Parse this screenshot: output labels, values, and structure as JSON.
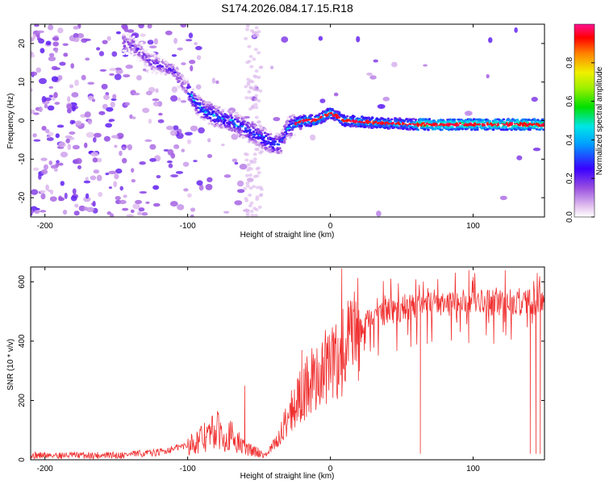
{
  "title": "S174.2026.084.17.15.R18",
  "chart_data": [
    {
      "type": "heatmap",
      "name": "spectrogram",
      "xlabel": "Height of straight line (km)",
      "ylabel": "Frequency (Hz)",
      "xlim": [
        -210,
        150
      ],
      "ylim": [
        -25,
        25
      ],
      "xticks": [
        -200,
        -100,
        0,
        100
      ],
      "yticks": [
        -20,
        -10,
        0,
        10,
        20
      ],
      "colorbar": {
        "label": "Normalized spectral amplitude",
        "range": [
          0,
          1
        ],
        "ticks": [
          0.0,
          0.2,
          0.4,
          0.6,
          0.8
        ],
        "tick_labels": [
          "0.0",
          "0.2",
          "0.4",
          "0.6",
          "0.8"
        ]
      },
      "ridge": [
        {
          "x": -140,
          "y": 20
        },
        {
          "x": -125,
          "y": 15
        },
        {
          "x": -110,
          "y": 13
        },
        {
          "x": -100,
          "y": 8
        },
        {
          "x": -95,
          "y": 5
        },
        {
          "x": -90,
          "y": 3
        },
        {
          "x": -80,
          "y": 1
        },
        {
          "x": -70,
          "y": 0
        },
        {
          "x": -60,
          "y": -2
        },
        {
          "x": -50,
          "y": -4
        },
        {
          "x": -40,
          "y": -6
        },
        {
          "x": -35,
          "y": -6
        },
        {
          "x": -30,
          "y": -2
        },
        {
          "x": -20,
          "y": 0
        },
        {
          "x": -10,
          "y": 0
        },
        {
          "x": 0,
          "y": 2
        },
        {
          "x": 10,
          "y": 0
        },
        {
          "x": 30,
          "y": -0.5
        },
        {
          "x": 60,
          "y": -1
        },
        {
          "x": 100,
          "y": -1
        },
        {
          "x": 150,
          "y": -1
        }
      ]
    },
    {
      "type": "line",
      "name": "snr",
      "xlabel": "Height of straight line (km)",
      "ylabel": "SNR (10 * v/v)",
      "xlim": [
        -210,
        150
      ],
      "ylim": [
        0,
        650
      ],
      "xticks": [
        -200,
        -100,
        0,
        100
      ],
      "yticks": [
        0,
        200,
        400,
        600
      ],
      "color": "#f03030",
      "trend": [
        {
          "x": -210,
          "y": 15
        },
        {
          "x": -150,
          "y": 15
        },
        {
          "x": -120,
          "y": 25
        },
        {
          "x": -100,
          "y": 50
        },
        {
          "x": -90,
          "y": 70
        },
        {
          "x": -80,
          "y": 100
        },
        {
          "x": -70,
          "y": 80
        },
        {
          "x": -60,
          "y": 40
        },
        {
          "x": -45,
          "y": 15
        },
        {
          "x": -35,
          "y": 80
        },
        {
          "x": -30,
          "y": 150
        },
        {
          "x": -20,
          "y": 220
        },
        {
          "x": -10,
          "y": 280
        },
        {
          "x": 0,
          "y": 320
        },
        {
          "x": 10,
          "y": 360
        },
        {
          "x": 20,
          "y": 430
        },
        {
          "x": 30,
          "y": 480
        },
        {
          "x": 40,
          "y": 500
        },
        {
          "x": 60,
          "y": 520
        },
        {
          "x": 100,
          "y": 530
        },
        {
          "x": 150,
          "y": 530
        }
      ],
      "dips": [
        {
          "x": 63,
          "y": 20
        },
        {
          "x": 140,
          "y": 20
        },
        {
          "x": 144,
          "y": 20
        },
        {
          "x": 147,
          "y": 20
        }
      ],
      "peaks": [
        {
          "x": -60,
          "y": 250
        },
        {
          "x": -20,
          "y": 370
        },
        {
          "x": 8,
          "y": 645
        },
        {
          "x": 97,
          "y": 640
        }
      ]
    }
  ]
}
